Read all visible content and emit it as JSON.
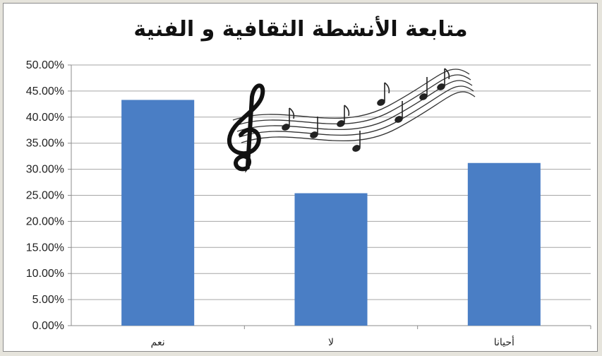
{
  "chart_data": {
    "type": "bar",
    "title": "متابعة الأنشطة الثقافية و الفنية",
    "xlabel": "",
    "ylabel": "",
    "categories": [
      "نعم",
      "لا",
      "أحيانا"
    ],
    "values": [
      43.3,
      25.4,
      31.2
    ],
    "ylim": [
      0,
      50
    ],
    "ytick_step": 5,
    "ytick_labels": [
      "0.00%",
      "5.00%",
      "10.00%",
      "15.00%",
      "20.00%",
      "25.00%",
      "30.00%",
      "35.00%",
      "40.00%",
      "45.00%",
      "50.00%"
    ],
    "grid": true,
    "legend": "none",
    "bar_color": "#4a7ec5",
    "decoration_icon": "music-notes-icon"
  }
}
